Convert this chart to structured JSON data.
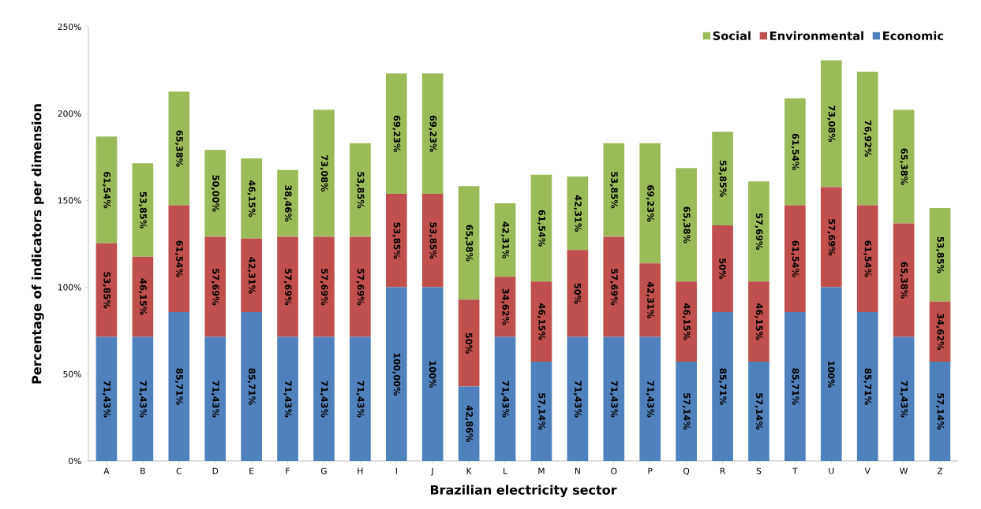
{
  "chart_data": {
    "type": "bar",
    "stacked": true,
    "xlabel": "Brazilian electricity sector",
    "ylabel": "Percentage of indicators per dimension",
    "categories": [
      "A",
      "B",
      "C",
      "D",
      "E",
      "F",
      "G",
      "H",
      "I",
      "J",
      "K",
      "L",
      "M",
      "N",
      "O",
      "P",
      "Q",
      "R",
      "S",
      "T",
      "U",
      "V",
      "W",
      "Z"
    ],
    "ylim": [
      0,
      250
    ],
    "yticks": [
      {
        "value": 0,
        "label": "0%"
      },
      {
        "value": 50,
        "label": "50%"
      },
      {
        "value": 100,
        "label": "100%"
      },
      {
        "value": 150,
        "label": "150%"
      },
      {
        "value": 200,
        "label": "200%"
      },
      {
        "value": 250,
        "label": "250%"
      }
    ],
    "legend": "top right",
    "grid": false,
    "series": [
      {
        "name": "Economic",
        "color": "#4f81bd",
        "values": [
          71.43,
          71.43,
          85.71,
          71.43,
          85.71,
          71.43,
          71.43,
          71.43,
          100,
          100,
          42.86,
          71.43,
          57.14,
          71.43,
          71.43,
          71.43,
          57.14,
          85.71,
          57.14,
          85.71,
          100,
          85.71,
          71.43,
          57.14
        ],
        "value_labels": [
          "71,43%",
          "71,43%",
          "85,71%",
          "71,43%",
          "85,71%",
          "71,43%",
          "71,43%",
          "71,43%",
          "100,00%",
          "100%",
          "42,86%",
          "71,43%",
          "57,14%",
          "71,43%",
          "71,43%",
          "71,43%",
          "57,14%",
          "85,71%",
          "57,14%",
          "85,71%",
          "100%",
          "85,71%",
          "71,43%",
          "57,14%"
        ]
      },
      {
        "name": "Environmental",
        "color": "#c0504d",
        "values": [
          53.85,
          46.15,
          61.54,
          57.69,
          42.31,
          57.69,
          57.69,
          57.69,
          53.85,
          53.85,
          50,
          34.62,
          46.15,
          50,
          57.69,
          42.31,
          46.15,
          50,
          46.15,
          61.54,
          57.69,
          61.54,
          65.38,
          34.62
        ],
        "value_labels": [
          "53,85%",
          "46,15%",
          "61,54%",
          "57,69%",
          "42,31%",
          "57,69%",
          "57,69%",
          "57,69%",
          "53,85%",
          "53,85%",
          "50%",
          "34,62%",
          "46,15%",
          "50%",
          "57,69%",
          "42,31%",
          "46,15%",
          "50%",
          "46,15%",
          "61,54%",
          "57,69%",
          "61,54%",
          "65,38%",
          "34,62%"
        ]
      },
      {
        "name": "Social",
        "color": "#9bbb59",
        "values": [
          61.54,
          53.85,
          65.38,
          50,
          46.15,
          38.46,
          73.08,
          53.85,
          69.23,
          69.23,
          65.38,
          42.31,
          61.54,
          42.31,
          53.85,
          69.23,
          65.38,
          53.85,
          57.69,
          61.54,
          73.08,
          76.92,
          65.38,
          53.85
        ],
        "value_labels": [
          "61,54%",
          "53,85%",
          "65,38%",
          "50,00%",
          "46,15%",
          "38,46%",
          "73,08%",
          "53,85%",
          "69,23%",
          "69,23%",
          "65,38%",
          "42,31%",
          "61,54%",
          "42,31%",
          "53,85%",
          "69,23%",
          "65,38%",
          "53,85%",
          "57,69%",
          "61,54%",
          "73,08%",
          "76,92%",
          "65,38%",
          "53,85%"
        ]
      }
    ]
  }
}
